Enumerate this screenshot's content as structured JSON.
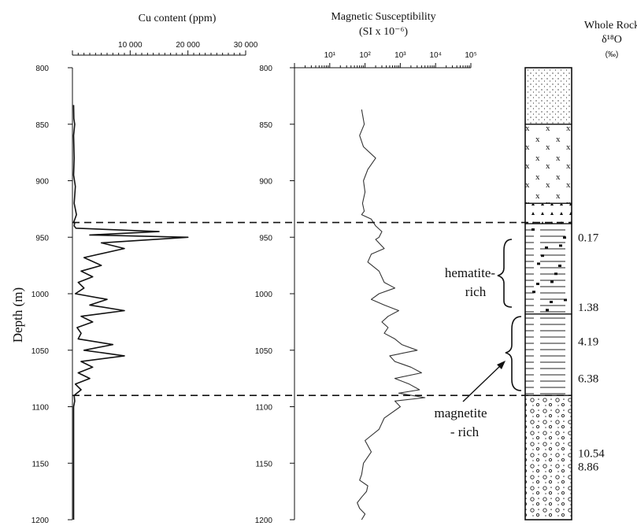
{
  "chart_data": [
    {
      "type": "line",
      "title": "Cu content (ppm)",
      "ylabel": "Depth (m)",
      "y_reversed": true,
      "ylim": [
        800,
        1200
      ],
      "yticks": [
        "800",
        "850",
        "900",
        "950",
        "1000",
        "1050",
        "1100",
        "1150",
        "1200"
      ],
      "xlim": [
        0,
        30000
      ],
      "xticks": [
        "10 000",
        "20 000",
        "30 000"
      ],
      "series": [
        {
          "x": [
            200,
            250,
            400,
            200,
            300,
            200,
            500,
            300,
            700,
            200,
            400,
            300,
            600,
            15000,
            3000,
            20000,
            5000,
            9000,
            2000,
            5000,
            1500,
            3500,
            1000,
            2000,
            500,
            6000,
            3000,
            9000,
            1500,
            3500,
            800,
            1500,
            1000,
            7000,
            2000,
            9000,
            1500,
            3500,
            1000,
            3000,
            500,
            1500,
            300,
            400,
            200,
            200,
            200
          ],
          "y": [
            833,
            845,
            850,
            860,
            880,
            895,
            905,
            920,
            930,
            937,
            937,
            940,
            942,
            945,
            948,
            950,
            955,
            960,
            968,
            975,
            980,
            985,
            990,
            995,
            1000,
            1005,
            1010,
            1015,
            1020,
            1025,
            1030,
            1035,
            1040,
            1045,
            1050,
            1055,
            1060,
            1065,
            1070,
            1075,
            1080,
            1085,
            1090,
            1095,
            1100,
            1150,
            1200
          ]
        }
      ]
    },
    {
      "type": "line",
      "title_line1": "Magnetic Susceptibility",
      "title_line2": "(SI x 10⁻⁶)",
      "y_reversed": true,
      "ylim": [
        800,
        1200
      ],
      "yticks": [
        "800",
        "850",
        "900",
        "950",
        "1000",
        "1050",
        "1100",
        "1150",
        "1200"
      ],
      "xscale": "log",
      "xlim": [
        1,
        100000
      ],
      "xticks": [
        "10¹",
        "10²",
        "10³",
        "10⁴",
        "10⁵"
      ],
      "series": [
        {
          "x": [
            80,
            95,
            70,
            90,
            200,
            120,
            90,
            100,
            85,
            95,
            80,
            150,
            200,
            300,
            250,
            200,
            350,
            150,
            120,
            250,
            350,
            700,
            250,
            150,
            350,
            900,
            450,
            300,
            450,
            350,
            700,
            1100,
            3000,
            500,
            700,
            2000,
            4000,
            700,
            1800,
            3500,
            900,
            5000,
            700,
            1000,
            350,
            250,
            100,
            150,
            90,
            80,
            70,
            120,
            110,
            80,
            60,
            70,
            100,
            80
          ],
          "y": [
            837,
            850,
            860,
            870,
            880,
            890,
            900,
            910,
            920,
            927,
            930,
            934,
            940,
            945,
            950,
            952,
            960,
            965,
            972,
            980,
            990,
            995,
            1000,
            1005,
            1010,
            1015,
            1020,
            1025,
            1030,
            1035,
            1040,
            1045,
            1050,
            1055,
            1060,
            1065,
            1070,
            1075,
            1080,
            1085,
            1088,
            1092,
            1095,
            1100,
            1110,
            1120,
            1130,
            1140,
            1150,
            1160,
            1165,
            1170,
            1175,
            1180,
            1185,
            1190,
            1195,
            1200
          ]
        }
      ]
    },
    {
      "type": "table",
      "title_line1": "Whole Rock",
      "title_line2": "δ¹⁸O",
      "title_line3": "(‰)",
      "values": [
        {
          "depth": 950,
          "value": "0.17"
        },
        {
          "depth": 1012,
          "value": "1.38"
        },
        {
          "depth": 1042,
          "value": "4.19"
        },
        {
          "depth": 1075,
          "value": "6.38"
        },
        {
          "depth": 1141,
          "value": "10.54"
        },
        {
          "depth": 1153,
          "value": "8.86"
        }
      ],
      "units": [
        {
          "from": 800,
          "to": 850,
          "pattern": "fine-dots"
        },
        {
          "from": 850,
          "to": 920,
          "pattern": "crosses"
        },
        {
          "from": 920,
          "to": 938,
          "pattern": "triangles"
        },
        {
          "from": 938,
          "to": 1018,
          "pattern": "lines-brecciated"
        },
        {
          "from": 1018,
          "to": 1090,
          "pattern": "lines"
        },
        {
          "from": 1090,
          "to": 1200,
          "pattern": "conglomerate"
        }
      ]
    }
  ],
  "annotations": {
    "hematite_line1": "hematite-",
    "hematite_line2": "rich",
    "magnetite_line1": "magnetite",
    "magnetite_line2": "- rich"
  },
  "boundaries": [
    937,
    1090
  ]
}
